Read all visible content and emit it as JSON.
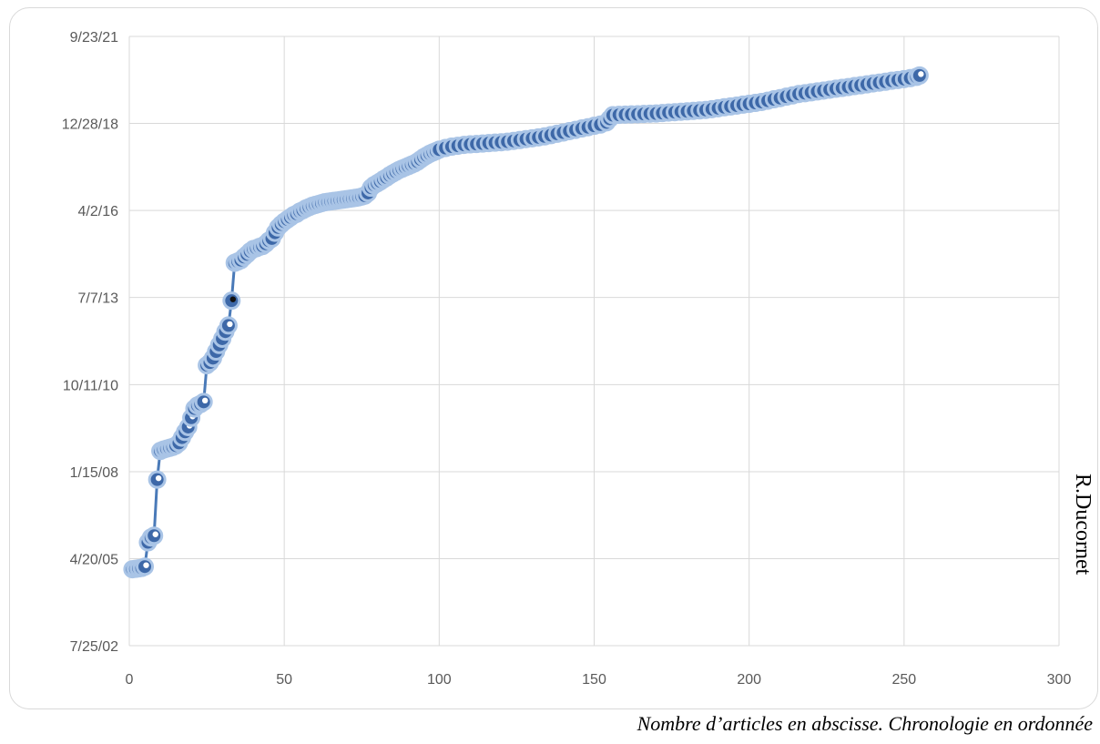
{
  "caption": "Nombre d’articles en abscisse. Chronologie en ordonnée",
  "side_label": "R.Ducornet",
  "colors": {
    "line": "#4a7ab8",
    "marker_fill": "#3d68a8",
    "marker_edge": "#a9c4e6",
    "highlight": "#111111",
    "grid": "#d9d9d9"
  },
  "chart_data": {
    "type": "scatter",
    "title": "",
    "xlabel": "",
    "ylabel": "",
    "xlim": [
      0,
      300
    ],
    "xticks": [
      "0",
      "50",
      "100",
      "150",
      "200",
      "250",
      "300"
    ],
    "ylim": [
      "7/25/02",
      "9/23/21"
    ],
    "yticks": [
      "7/25/02",
      "4/20/05",
      "1/15/08",
      "10/11/10",
      "7/7/13",
      "4/2/16",
      "12/28/18",
      "9/23/21"
    ],
    "grid": true,
    "connected": true,
    "highlight_point": [
      33,
      "2013-06-01"
    ],
    "points": [
      [
        1,
        "2004-12-20"
      ],
      [
        2,
        "2004-12-25"
      ],
      [
        3,
        "2004-12-30"
      ],
      [
        4,
        "2005-01-05"
      ],
      [
        5,
        "2005-01-20"
      ],
      [
        6,
        "2005-10-25"
      ],
      [
        7,
        "2005-12-20"
      ],
      [
        8,
        "2006-01-10"
      ],
      [
        9,
        "2007-10-15"
      ],
      [
        10,
        "2008-09-10"
      ],
      [
        11,
        "2008-09-25"
      ],
      [
        12,
        "2008-10-05"
      ],
      [
        13,
        "2008-10-15"
      ],
      [
        14,
        "2008-10-25"
      ],
      [
        15,
        "2008-11-10"
      ],
      [
        16,
        "2008-12-10"
      ],
      [
        17,
        "2009-02-10"
      ],
      [
        18,
        "2009-04-15"
      ],
      [
        19,
        "2009-06-10"
      ],
      [
        20,
        "2009-09-25"
      ],
      [
        21,
        "2010-01-10"
      ],
      [
        22,
        "2010-02-15"
      ],
      [
        23,
        "2010-03-01"
      ],
      [
        24,
        "2010-03-25"
      ],
      [
        25,
        "2011-05-20"
      ],
      [
        26,
        "2011-06-20"
      ],
      [
        27,
        "2011-08-10"
      ],
      [
        28,
        "2011-10-25"
      ],
      [
        29,
        "2012-01-10"
      ],
      [
        30,
        "2012-03-20"
      ],
      [
        31,
        "2012-06-10"
      ],
      [
        32,
        "2012-08-20"
      ],
      [
        33,
        "2013-06-01"
      ],
      [
        34,
        "2014-08-10"
      ],
      [
        35,
        "2014-08-25"
      ],
      [
        36,
        "2014-09-10"
      ],
      [
        37,
        "2014-10-15"
      ],
      [
        38,
        "2014-11-15"
      ],
      [
        39,
        "2014-12-20"
      ],
      [
        40,
        "2015-01-15"
      ],
      [
        41,
        "2015-01-25"
      ],
      [
        42,
        "2015-02-10"
      ],
      [
        43,
        "2015-02-20"
      ],
      [
        44,
        "2015-03-15"
      ],
      [
        45,
        "2015-04-20"
      ],
      [
        46,
        "2015-05-15"
      ],
      [
        47,
        "2015-07-20"
      ],
      [
        48,
        "2015-09-20"
      ],
      [
        49,
        "2015-10-25"
      ],
      [
        50,
        "2015-11-25"
      ],
      [
        51,
        "2015-12-20"
      ],
      [
        52,
        "2016-01-15"
      ],
      [
        53,
        "2016-02-10"
      ],
      [
        54,
        "2016-02-25"
      ],
      [
        55,
        "2016-03-20"
      ],
      [
        56,
        "2016-04-05"
      ],
      [
        57,
        "2016-04-25"
      ],
      [
        58,
        "2016-05-10"
      ],
      [
        59,
        "2016-05-25"
      ],
      [
        60,
        "2016-06-05"
      ],
      [
        61,
        "2016-06-15"
      ],
      [
        62,
        "2016-06-25"
      ],
      [
        63,
        "2016-07-05"
      ],
      [
        64,
        "2016-07-10"
      ],
      [
        65,
        "2016-07-15"
      ],
      [
        66,
        "2016-07-20"
      ],
      [
        67,
        "2016-07-25"
      ],
      [
        68,
        "2016-07-30"
      ],
      [
        69,
        "2016-08-05"
      ],
      [
        70,
        "2016-08-10"
      ],
      [
        71,
        "2016-08-15"
      ],
      [
        72,
        "2016-08-20"
      ],
      [
        73,
        "2016-08-25"
      ],
      [
        74,
        "2016-09-01"
      ],
      [
        75,
        "2016-09-10"
      ],
      [
        76,
        "2016-09-20"
      ],
      [
        77,
        "2016-10-20"
      ],
      [
        78,
        "2016-12-20"
      ],
      [
        79,
        "2017-01-20"
      ],
      [
        80,
        "2017-02-10"
      ],
      [
        81,
        "2017-03-01"
      ],
      [
        82,
        "2017-03-25"
      ],
      [
        83,
        "2017-04-15"
      ],
      [
        84,
        "2017-05-10"
      ],
      [
        85,
        "2017-06-01"
      ],
      [
        86,
        "2017-06-20"
      ],
      [
        87,
        "2017-07-10"
      ],
      [
        88,
        "2017-07-25"
      ],
      [
        89,
        "2017-08-10"
      ],
      [
        90,
        "2017-08-25"
      ],
      [
        91,
        "2017-09-10"
      ],
      [
        92,
        "2017-09-25"
      ],
      [
        93,
        "2017-10-15"
      ],
      [
        94,
        "2017-11-10"
      ],
      [
        95,
        "2017-12-05"
      ],
      [
        96,
        "2017-12-25"
      ],
      [
        97,
        "2018-01-15"
      ],
      [
        98,
        "2018-02-01"
      ],
      [
        99,
        "2018-02-15"
      ],
      [
        100,
        "2018-03-01"
      ],
      [
        102,
        "2018-03-20"
      ],
      [
        104,
        "2018-04-05"
      ],
      [
        106,
        "2018-04-15"
      ],
      [
        108,
        "2018-04-25"
      ],
      [
        110,
        "2018-05-01"
      ],
      [
        112,
        "2018-05-05"
      ],
      [
        114,
        "2018-05-10"
      ],
      [
        116,
        "2018-05-15"
      ],
      [
        118,
        "2018-05-20"
      ],
      [
        120,
        "2018-05-25"
      ],
      [
        122,
        "2018-06-01"
      ],
      [
        124,
        "2018-06-10"
      ],
      [
        126,
        "2018-06-20"
      ],
      [
        128,
        "2018-07-01"
      ],
      [
        130,
        "2018-07-10"
      ],
      [
        132,
        "2018-07-20"
      ],
      [
        134,
        "2018-08-01"
      ],
      [
        136,
        "2018-08-15"
      ],
      [
        138,
        "2018-09-01"
      ],
      [
        140,
        "2018-09-15"
      ],
      [
        142,
        "2018-10-01"
      ],
      [
        144,
        "2018-10-15"
      ],
      [
        146,
        "2018-11-01"
      ],
      [
        148,
        "2018-11-15"
      ],
      [
        150,
        "2018-12-01"
      ],
      [
        152,
        "2018-12-15"
      ],
      [
        154,
        "2019-01-10"
      ],
      [
        155,
        "2019-02-20"
      ],
      [
        156,
        "2019-04-01"
      ],
      [
        158,
        "2019-04-05"
      ],
      [
        160,
        "2019-04-08"
      ],
      [
        162,
        "2019-04-10"
      ],
      [
        164,
        "2019-04-12"
      ],
      [
        166,
        "2019-04-15"
      ],
      [
        168,
        "2019-04-18"
      ],
      [
        170,
        "2019-04-20"
      ],
      [
        172,
        "2019-04-25"
      ],
      [
        174,
        "2019-05-01"
      ],
      [
        176,
        "2019-05-05"
      ],
      [
        178,
        "2019-05-10"
      ],
      [
        180,
        "2019-05-15"
      ],
      [
        182,
        "2019-05-20"
      ],
      [
        184,
        "2019-05-25"
      ],
      [
        186,
        "2019-06-01"
      ],
      [
        188,
        "2019-06-10"
      ],
      [
        190,
        "2019-06-20"
      ],
      [
        192,
        "2019-07-01"
      ],
      [
        194,
        "2019-07-10"
      ],
      [
        196,
        "2019-07-20"
      ],
      [
        198,
        "2019-08-01"
      ],
      [
        200,
        "2019-08-10"
      ],
      [
        202,
        "2019-08-20"
      ],
      [
        204,
        "2019-09-01"
      ],
      [
        206,
        "2019-09-15"
      ],
      [
        208,
        "2019-10-01"
      ],
      [
        210,
        "2019-10-15"
      ],
      [
        212,
        "2019-11-01"
      ],
      [
        214,
        "2019-11-15"
      ],
      [
        216,
        "2019-12-01"
      ],
      [
        218,
        "2019-12-10"
      ],
      [
        220,
        "2019-12-20"
      ],
      [
        222,
        "2019-12-30"
      ],
      [
        224,
        "2020-01-10"
      ],
      [
        226,
        "2020-01-20"
      ],
      [
        228,
        "2020-02-01"
      ],
      [
        230,
        "2020-02-10"
      ],
      [
        232,
        "2020-02-20"
      ],
      [
        234,
        "2020-03-01"
      ],
      [
        236,
        "2020-03-10"
      ],
      [
        238,
        "2020-03-20"
      ],
      [
        240,
        "2020-04-01"
      ],
      [
        242,
        "2020-04-10"
      ],
      [
        244,
        "2020-04-20"
      ],
      [
        246,
        "2020-05-01"
      ],
      [
        248,
        "2020-05-10"
      ],
      [
        250,
        "2020-05-20"
      ],
      [
        252,
        "2020-06-01"
      ],
      [
        254,
        "2020-06-15"
      ],
      [
        255,
        "2020-07-01"
      ]
    ]
  }
}
